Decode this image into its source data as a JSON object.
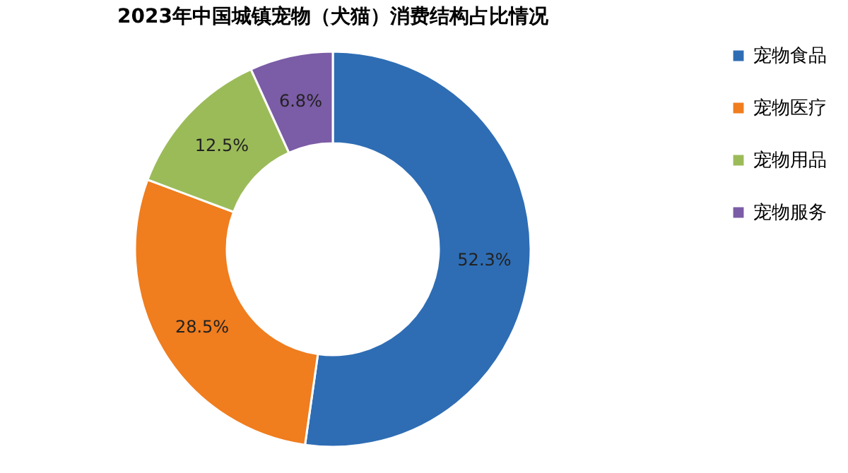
{
  "chart_data": {
    "type": "donut",
    "title": "2023年中国城镇宠物（犬猫）消费结构占比情况",
    "categories": [
      "宠物食品",
      "宠物医疗",
      "宠物用品",
      "宠物服务"
    ],
    "values": [
      52.3,
      28.5,
      12.5,
      6.8
    ],
    "colors": [
      "#2e6db4",
      "#f07d1e",
      "#9bbb59",
      "#7b5ca6"
    ],
    "value_labels": [
      "52.3%",
      "28.5%",
      "12.5%",
      "6.8%"
    ],
    "legend": "right"
  }
}
